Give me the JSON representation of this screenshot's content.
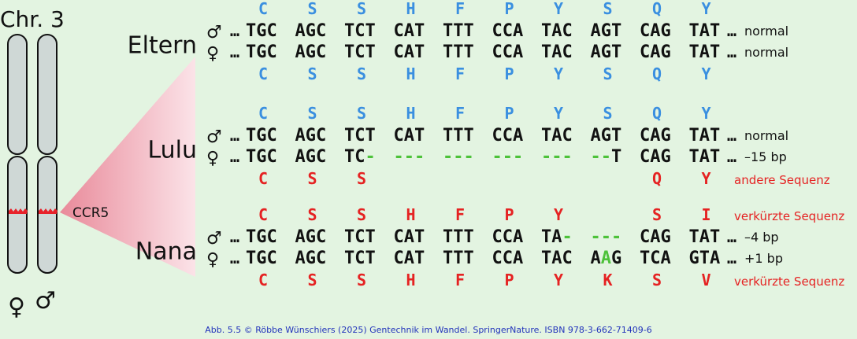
{
  "chromosome_label": "Chr. 3",
  "gene_label": "CCR5",
  "bottom_symbols": {
    "female": "♀",
    "male": "♂"
  },
  "colors": {
    "background": "#e3f4e1",
    "amino_blue": "#3a8fe0",
    "amino_red": "#e52222",
    "gap_green": "#4dc23a",
    "note_red": "#e52222",
    "gene_band": "#e8222a",
    "wedge": "#e98a9a"
  },
  "groups": [
    {
      "name": "Eltern",
      "aa_top": {
        "color": "blue",
        "letters": [
          "C",
          "S",
          "S",
          "H",
          "F",
          "P",
          "Y",
          "S",
          "Q",
          "Y"
        ]
      },
      "rows": [
        {
          "symbol": "♂",
          "prefix": "…",
          "codons": [
            [
              "TGC"
            ],
            [
              "AGC"
            ],
            [
              "TCT"
            ],
            [
              "CAT"
            ],
            [
              "TTT"
            ],
            [
              "CCA"
            ],
            [
              "TAC"
            ],
            [
              "AGT"
            ],
            [
              "CAG"
            ],
            [
              "TAT"
            ]
          ],
          "suffix": "…",
          "note": "normal",
          "note_color": "black"
        },
        {
          "symbol": "♀",
          "prefix": "…",
          "codons": [
            [
              "TGC"
            ],
            [
              "AGC"
            ],
            [
              "TCT"
            ],
            [
              "CAT"
            ],
            [
              "TTT"
            ],
            [
              "CCA"
            ],
            [
              "TAC"
            ],
            [
              "AGT"
            ],
            [
              "CAG"
            ],
            [
              "TAT"
            ]
          ],
          "suffix": "…",
          "note": "normal",
          "note_color": "black"
        }
      ],
      "aa_bottom": {
        "color": "blue",
        "letters": [
          "C",
          "S",
          "S",
          "H",
          "F",
          "P",
          "Y",
          "S",
          "Q",
          "Y"
        ]
      }
    },
    {
      "name": "Lulu",
      "aa_top": {
        "color": "blue",
        "letters": [
          "C",
          "S",
          "S",
          "H",
          "F",
          "P",
          "Y",
          "S",
          "Q",
          "Y"
        ]
      },
      "rows": [
        {
          "symbol": "♂",
          "prefix": "…",
          "codons": [
            [
              "TGC"
            ],
            [
              "AGC"
            ],
            [
              "TCT"
            ],
            [
              "CAT"
            ],
            [
              "TTT"
            ],
            [
              "CCA"
            ],
            [
              "TAC"
            ],
            [
              "AGT"
            ],
            [
              "CAG"
            ],
            [
              "TAT"
            ]
          ],
          "suffix": "…",
          "note": "normal",
          "note_color": "black"
        },
        {
          "symbol": "♀",
          "prefix": "…",
          "codons": [
            [
              "TGC"
            ],
            [
              "AGC"
            ],
            [
              "TC",
              "g:-"
            ],
            [
              "g:---"
            ],
            [
              "g:---"
            ],
            [
              "g:---"
            ],
            [
              "g:---"
            ],
            [
              "g:--",
              "T"
            ],
            [
              "CAG"
            ],
            [
              "TAT"
            ]
          ],
          "suffix": "…",
          "note": "–15 bp",
          "note_color": "black"
        }
      ],
      "aa_bottom": {
        "color": "red",
        "letters": [
          "C",
          "S",
          "S",
          "",
          "",
          "",
          "",
          "",
          "Q",
          "Y"
        ],
        "note": "andere Sequenz"
      }
    },
    {
      "name": "Nana",
      "aa_top": {
        "color": "red",
        "letters": [
          "C",
          "S",
          "S",
          "H",
          "F",
          "P",
          "Y",
          "",
          "S",
          "I"
        ],
        "note": "verkürzte Sequenz"
      },
      "rows": [
        {
          "symbol": "♂",
          "prefix": "…",
          "codons": [
            [
              "TGC"
            ],
            [
              "AGC"
            ],
            [
              "TCT"
            ],
            [
              "CAT"
            ],
            [
              "TTT"
            ],
            [
              "CCA"
            ],
            [
              "TA",
              "g:-"
            ],
            [
              "g:---"
            ],
            [
              "CAG"
            ],
            [
              "TAT"
            ]
          ],
          "suffix": "…",
          "note": "–4 bp",
          "note_color": "black"
        },
        {
          "symbol": "♀",
          "prefix": "…",
          "codons": [
            [
              "TGC"
            ],
            [
              "AGC"
            ],
            [
              "TCT"
            ],
            [
              "CAT"
            ],
            [
              "TTT"
            ],
            [
              "CCA"
            ],
            [
              "TAC"
            ],
            [
              "A",
              "g:A",
              "G"
            ],
            [
              "TCA"
            ],
            [
              "GTA"
            ]
          ],
          "suffix": "…",
          "note": "+1 bp",
          "note_color": "black"
        }
      ],
      "aa_bottom": {
        "color": "red",
        "letters": [
          "C",
          "S",
          "S",
          "H",
          "F",
          "P",
          "Y",
          "K",
          "S",
          "V"
        ],
        "note": "verkürzte Sequenz"
      }
    }
  ],
  "caption": "Abb. 5.5 © Röbbe Wünschiers (2025) Gentechnik im Wandel. SpringerNature. ISBN 978-3-662-71409-6"
}
